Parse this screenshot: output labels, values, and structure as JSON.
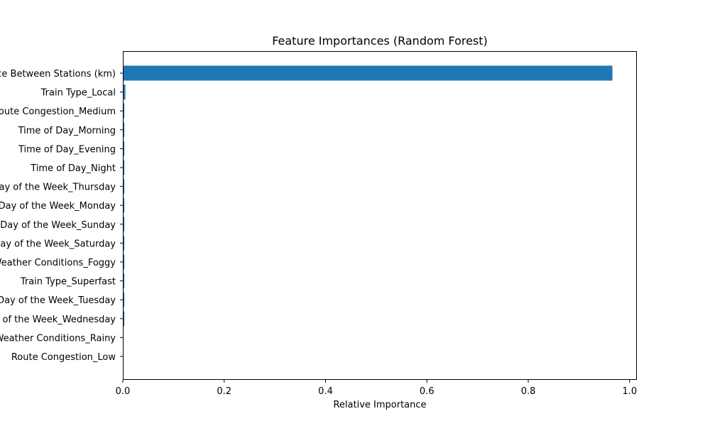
{
  "chart_data": {
    "type": "bar",
    "orientation": "horizontal",
    "title": "Feature Importances (Random Forest)",
    "xlabel": "Relative Importance",
    "ylabel": "",
    "xlim": [
      0,
      1.0
    ],
    "xticks": [
      0.0,
      0.2,
      0.4,
      0.6,
      0.8,
      1.0
    ],
    "xtick_labels": [
      "0.0",
      "0.2",
      "0.4",
      "0.6",
      "0.8",
      "1.0"
    ],
    "grid": false,
    "bar_color": "#1f77b4",
    "categories": [
      "Distance Between Stations (km)",
      "Train Type_Local",
      "Route Congestion_Medium",
      "Time of Day_Morning",
      "Time of Day_Evening",
      "Time of Day_Night",
      "Day of the Week_Thursday",
      "Day of the Week_Monday",
      "Day of the Week_Sunday",
      "Day of the Week_Saturday",
      "Weather Conditions_Foggy",
      "Train Type_Superfast",
      "Day of the Week_Tuesday",
      "Day of the Week_Wednesday",
      "Weather Conditions_Rainy",
      "Route Congestion_Low"
    ],
    "values": [
      0.966,
      0.005,
      0.003,
      0.003,
      0.003,
      0.003,
      0.003,
      0.003,
      0.003,
      0.003,
      0.003,
      0.003,
      0.003,
      0.003,
      0.001,
      0.001
    ]
  }
}
